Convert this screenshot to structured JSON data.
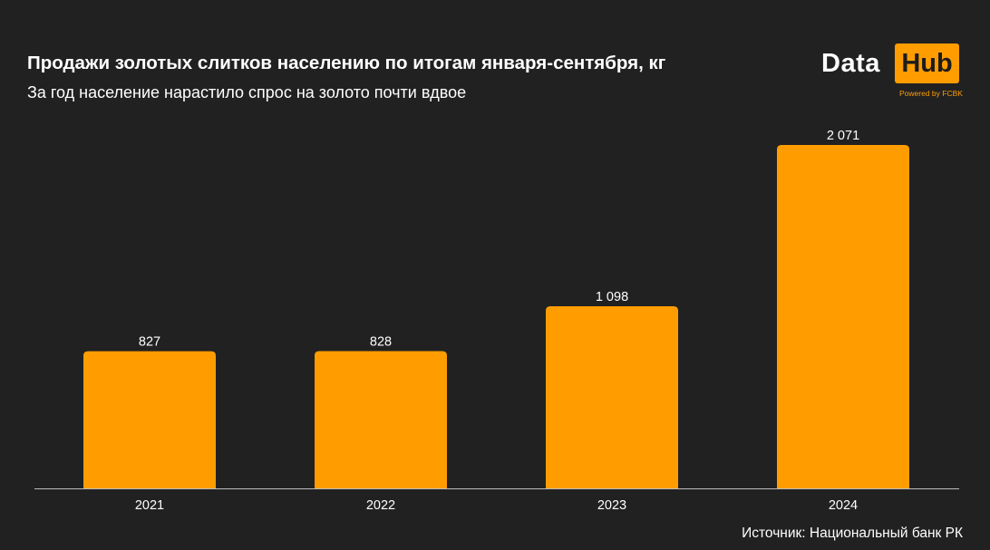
{
  "header": {
    "title": "Продажи золотых слитков населению по итогам января-сентября, кг",
    "subtitle": "За год население нарастило спрос на золото почти вдвое"
  },
  "logo": {
    "data_text": "Data",
    "hub_text": "Hub",
    "powered_text": "Powered by FCBK"
  },
  "footer": {
    "source": "Источник: Национальный банк РК"
  },
  "colors": {
    "background": "#212121",
    "bar": "#ff9d00",
    "text": "#ffffff"
  },
  "chart_data": {
    "type": "bar",
    "categories": [
      "2021",
      "2022",
      "2023",
      "2024"
    ],
    "values": [
      827,
      828,
      1098,
      2071
    ],
    "value_labels": [
      "827",
      "828",
      "1 098",
      "2 071"
    ],
    "title": "Продажи золотых слитков населению по итогам января-сентября, кг",
    "subtitle": "За год население нарастило спрос на золото почти вдвое",
    "xlabel": "",
    "ylabel": "",
    "ylim": [
      0,
      2071
    ],
    "grid": false,
    "legend": "none"
  }
}
